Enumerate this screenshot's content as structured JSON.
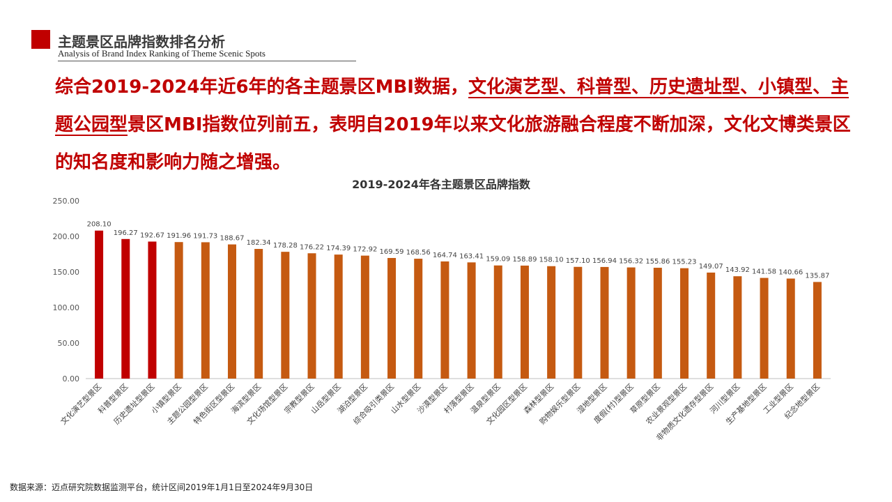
{
  "header": {
    "title": "主题景区品牌指数排名分析",
    "subtitle": "Analysis of Brand Index Ranking of Theme Scenic Spots"
  },
  "headline": {
    "part1": "综合2019-2024年近6年的各主题景区MBI数据，",
    "highlight": "文化演艺型、科普型、历史遗址型、小镇型、主题公园型",
    "part2": "景区MBI指数位列前五，表明自2019年以来文化旅游融合程度不断加深，文化文博类景区的知名度和影响力随之增强。"
  },
  "source": "数据来源：迈点研究院数据监测平台，统计区间2019年1月1日至2024年9月30日",
  "colors": {
    "brand_red": "#c00000",
    "bar_orange": "#c55a11",
    "bar_red": "#c00000"
  },
  "chart_data": {
    "type": "bar",
    "title": "2019-2024年各主题景区品牌指数",
    "xlabel": "",
    "ylabel": "",
    "ylim": [
      0,
      250
    ],
    "yticks": [
      "0.00",
      "50.00",
      "100.00",
      "150.00",
      "200.00",
      "250.00"
    ],
    "grid": false,
    "highlight_count": 3,
    "categories": [
      "文化演艺型景区",
      "科普型景区",
      "历史遗址型景区",
      "小镇型景区",
      "主题公园型景区",
      "特色街区型景区",
      "海滨型景区",
      "文化场馆型景区",
      "宗教型景区",
      "山岳型景区",
      "湖泊型景区",
      "综合吸引类景区",
      "山水型景区",
      "沙漠型景区",
      "村落型景区",
      "温泉型景区",
      "文化园区型景区",
      "森林型景区",
      "购物娱乐型景区",
      "湿地型景区",
      "度假(村)型景区",
      "草原型景区",
      "农业景观型景区",
      "非物质文化遗存型景区",
      "河川型景区",
      "生产基地型景区",
      "工业型景区",
      "纪念地型景区"
    ],
    "values": [
      208.1,
      196.27,
      192.67,
      191.96,
      191.73,
      188.67,
      182.34,
      178.28,
      176.22,
      174.39,
      172.92,
      169.59,
      168.56,
      164.74,
      163.41,
      159.09,
      158.89,
      158.1,
      157.1,
      156.94,
      156.32,
      155.86,
      155.23,
      149.07,
      143.92,
      141.58,
      140.66,
      135.87
    ]
  }
}
